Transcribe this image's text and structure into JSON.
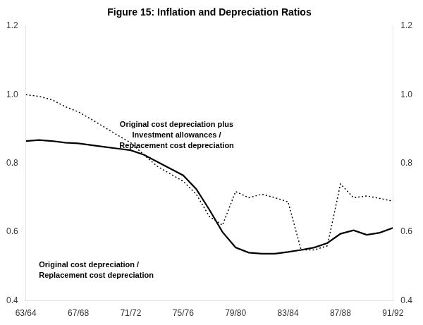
{
  "chart_data": {
    "type": "line",
    "title": "Figure 15: Inflation and Depreciation Ratios",
    "x": [
      0,
      1,
      2,
      3,
      4,
      5,
      6,
      7,
      8,
      9,
      10,
      11,
      12,
      13,
      14,
      15,
      16,
      17,
      18,
      19,
      20,
      21,
      22,
      23,
      24,
      25,
      26,
      27,
      28
    ],
    "xlim": [
      0,
      28
    ],
    "xticks": [
      {
        "value": 0,
        "label": "63/64"
      },
      {
        "value": 4,
        "label": "67/68"
      },
      {
        "value": 8,
        "label": "71/72"
      },
      {
        "value": 12,
        "label": "75/76"
      },
      {
        "value": 16,
        "label": "79/80"
      },
      {
        "value": 20,
        "label": "83/84"
      },
      {
        "value": 24,
        "label": "87/88"
      },
      {
        "value": 28,
        "label": "91/92"
      }
    ],
    "ylim": [
      0.4,
      1.2
    ],
    "yticks": [
      0.4,
      0.6,
      0.8,
      {
        "value": 1.0,
        "label": "1.0"
      },
      1.2
    ],
    "y2lim": [
      0.4,
      1.2
    ],
    "y2ticks": [
      0.4,
      0.6,
      0.8,
      {
        "value": 1.0,
        "label": "1.0"
      },
      1.2
    ],
    "grid": false,
    "series": [
      {
        "color": "#000000",
        "line_style": "solid",
        "values": [
          0.865,
          0.868,
          0.865,
          0.86,
          0.858,
          0.853,
          0.848,
          0.843,
          0.838,
          0.825,
          0.805,
          0.785,
          0.765,
          0.725,
          0.665,
          0.6,
          0.555,
          0.54,
          0.537,
          0.537,
          0.542,
          0.548,
          0.555,
          0.568,
          0.595,
          0.605,
          0.592,
          0.598,
          0.612
        ]
      },
      {
        "color": "#000000",
        "line_style": "dotted",
        "values": [
          1.0,
          0.995,
          0.985,
          0.965,
          0.95,
          0.928,
          0.905,
          0.882,
          0.86,
          0.825,
          0.792,
          0.77,
          0.748,
          0.71,
          0.645,
          0.62,
          0.718,
          0.7,
          0.71,
          0.7,
          0.688,
          0.548,
          0.548,
          0.56,
          0.74,
          0.7,
          0.705,
          0.698,
          0.69
        ]
      }
    ],
    "annotations": [
      {
        "text": "Original cost depreciation plus\nInvestment allowances /\nReplacement cost depreciation",
        "x": 11.5,
        "y": 0.84
      },
      {
        "text": "Original cost depreciation /\nReplacement cost depreciation",
        "x": 1.0,
        "y": 0.515
      }
    ]
  }
}
